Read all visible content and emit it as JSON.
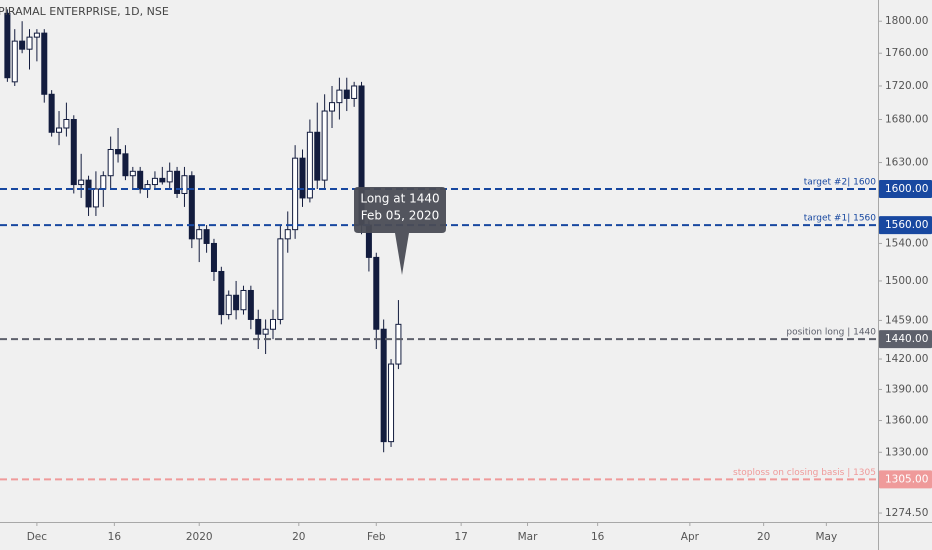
{
  "chart_data": {
    "type": "candlestick",
    "title": "PIRAMAL ENTERPRISE, 1D, NSE",
    "log_scale": true,
    "grid": false,
    "up_color": "#ffffff",
    "down_color": "#131c3e",
    "open": [
      1810,
      1725,
      1775,
      1765,
      1780,
      1785,
      1710,
      1665,
      1670,
      1680,
      1605,
      1610,
      1580,
      1600,
      1615,
      1645,
      1640,
      1615,
      1620,
      1600,
      1605,
      1612,
      1608,
      1620,
      1595,
      1615,
      1545,
      1555,
      1540,
      1510,
      1465,
      1485,
      1470,
      1490,
      1460,
      1445,
      1450,
      1460,
      1545,
      1555,
      1635,
      1590,
      1665,
      1610,
      1690,
      1700,
      1715,
      1705,
      1720,
      1560,
      1525,
      1450,
      1340,
      1415
    ],
    "high": [
      1815,
      1790,
      1800,
      1790,
      1790,
      1790,
      1715,
      1690,
      1700,
      1685,
      1640,
      1615,
      1620,
      1620,
      1660,
      1670,
      1650,
      1625,
      1625,
      1610,
      1620,
      1625,
      1630,
      1625,
      1625,
      1620,
      1560,
      1560,
      1545,
      1515,
      1490,
      1500,
      1495,
      1495,
      1470,
      1460,
      1470,
      1560,
      1575,
      1650,
      1645,
      1680,
      1700,
      1710,
      1720,
      1730,
      1730,
      1725,
      1725,
      1565,
      1530,
      1460,
      1420,
      1480
    ],
    "low": [
      1725,
      1720,
      1760,
      1740,
      1750,
      1700,
      1660,
      1650,
      1660,
      1595,
      1590,
      1570,
      1570,
      1580,
      1600,
      1630,
      1610,
      1600,
      1595,
      1590,
      1600,
      1605,
      1600,
      1590,
      1580,
      1535,
      1520,
      1530,
      1500,
      1455,
      1460,
      1460,
      1465,
      1450,
      1430,
      1425,
      1440,
      1455,
      1530,
      1545,
      1580,
      1585,
      1600,
      1600,
      1670,
      1680,
      1690,
      1695,
      1550,
      1510,
      1430,
      1330,
      1335,
      1410
    ],
    "close": [
      1730,
      1775,
      1765,
      1780,
      1785,
      1710,
      1665,
      1670,
      1680,
      1605,
      1610,
      1580,
      1600,
      1615,
      1645,
      1640,
      1615,
      1620,
      1600,
      1605,
      1612,
      1608,
      1620,
      1595,
      1615,
      1545,
      1555,
      1540,
      1510,
      1465,
      1485,
      1470,
      1490,
      1460,
      1445,
      1450,
      1460,
      1545,
      1555,
      1635,
      1590,
      1665,
      1610,
      1690,
      1700,
      1715,
      1705,
      1720,
      1560,
      1525,
      1450,
      1340,
      1415,
      1455
    ],
    "xlim": [
      -1,
      118
    ],
    "xticks": [
      {
        "value": 4,
        "label": "Dec"
      },
      {
        "value": 14.5,
        "label": "16"
      },
      {
        "value": 26,
        "label": "2020"
      },
      {
        "value": 39.5,
        "label": "20"
      },
      {
        "value": 50,
        "label": "Feb"
      },
      {
        "value": 61.5,
        "label": "17"
      },
      {
        "value": 70.5,
        "label": "Mar"
      },
      {
        "value": 80,
        "label": "16"
      },
      {
        "value": 92.5,
        "label": "Apr"
      },
      {
        "value": 102.5,
        "label": "20"
      },
      {
        "value": 111,
        "label": "May"
      }
    ],
    "ylim": [
      1266.5,
      1827
    ],
    "yticks": [
      {
        "value": 1800,
        "label": "1800.00"
      },
      {
        "value": 1760,
        "label": "1760.00"
      },
      {
        "value": 1720,
        "label": "1720.00"
      },
      {
        "value": 1680,
        "label": "1680.00"
      },
      {
        "value": 1630,
        "label": "1630.00"
      },
      {
        "value": 1540,
        "label": "1540.00"
      },
      {
        "value": 1500,
        "label": "1500.00"
      },
      {
        "value": 1459,
        "label": "1459.00"
      },
      {
        "value": 1420,
        "label": "1420.00"
      },
      {
        "value": 1390,
        "label": "1390.00"
      },
      {
        "value": 1360,
        "label": "1360.00"
      },
      {
        "value": 1330,
        "label": "1330.00"
      },
      {
        "value": 1274.5,
        "label": "1274.50"
      }
    ],
    "levels": [
      {
        "value": 1600,
        "label": "1600.00",
        "text": "target #2| 1600",
        "color": "#1848a0"
      },
      {
        "value": 1560,
        "label": "1560.00",
        "text": "target #1| 1560",
        "color": "#1848a0"
      },
      {
        "value": 1440,
        "label": "1440.00",
        "text": "position long | 1440",
        "color": "#5d606b"
      },
      {
        "value": 1305,
        "label": "1305.00",
        "text": "stoploss on closing basis | 1305",
        "color": "#ef9a9a"
      }
    ],
    "callout": {
      "lines": [
        "Long at 1440",
        "Feb 05, 2020"
      ]
    }
  }
}
